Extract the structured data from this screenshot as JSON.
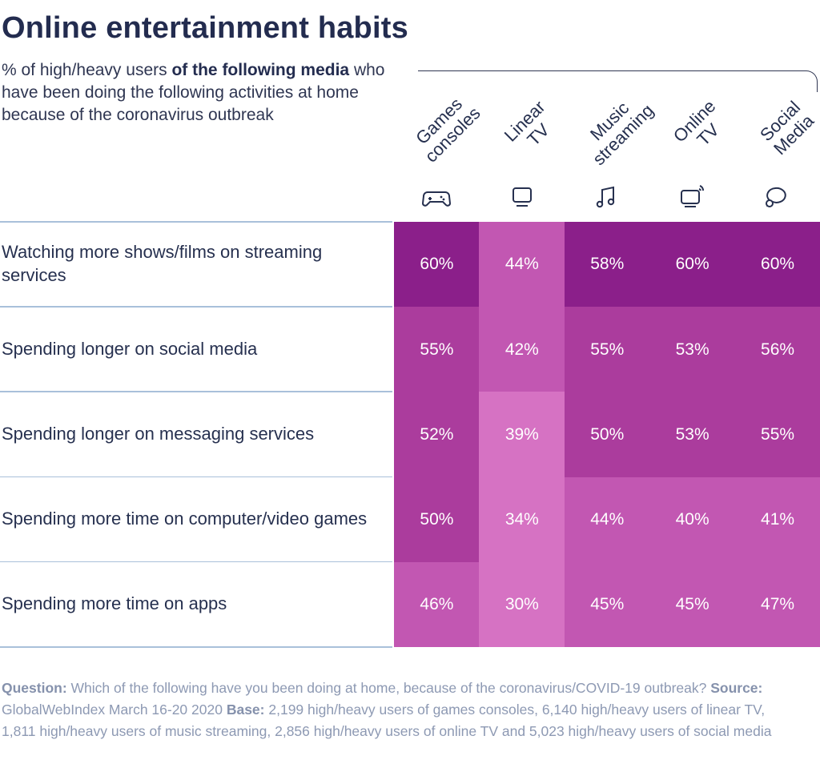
{
  "title": "Online entertainment habits",
  "subtitle": {
    "part1": "% of high/heavy users ",
    "bold": "of the following media",
    "part2": " who have been doing the following activities at home because of the coronavirus outbreak"
  },
  "colors": {
    "shade_60": "#8b1f8a",
    "shade_55": "#ab3c9d",
    "shade_44": "#c257b2",
    "shade_30": "#d672c3"
  },
  "chart_data": {
    "type": "table",
    "title": "Online entertainment habits",
    "columns": [
      {
        "line1": "Games",
        "line2": "consoles",
        "icon": "gamepad-icon"
      },
      {
        "line1": "Linear",
        "line2": "TV",
        "icon": "tv-icon"
      },
      {
        "line1": "Music",
        "line2": "streaming",
        "icon": "music-note-icon"
      },
      {
        "line1": "Online",
        "line2": "TV",
        "icon": "online-tv-icon"
      },
      {
        "line1": "Social",
        "line2": "Media",
        "icon": "speech-bubble-icon"
      }
    ],
    "rows": [
      {
        "label": "Watching more shows/films on streaming services",
        "values": [
          60,
          44,
          58,
          60,
          60
        ],
        "display": [
          "60%",
          "44%",
          "58%",
          "60%",
          "60%"
        ]
      },
      {
        "label": "Spending longer on social media",
        "values": [
          55,
          42,
          55,
          53,
          56
        ],
        "display": [
          "55%",
          "42%",
          "55%",
          "53%",
          "56%"
        ]
      },
      {
        "label": "Spending longer on messaging services",
        "values": [
          52,
          39,
          50,
          53,
          55
        ],
        "display": [
          "52%",
          "39%",
          "50%",
          "53%",
          "55%"
        ]
      },
      {
        "label": "Spending more time on computer/video games",
        "values": [
          50,
          34,
          44,
          40,
          41
        ],
        "display": [
          "50%",
          "34%",
          "44%",
          "40%",
          "41%"
        ]
      },
      {
        "label": "Spending more time on apps",
        "values": [
          46,
          30,
          45,
          45,
          47
        ],
        "display": [
          "46%",
          "30%",
          "45%",
          "45%",
          "47%"
        ]
      }
    ],
    "unit": "%"
  },
  "footnote": {
    "q_label": "Question:",
    "q_text": " Which of the following have you been doing at home, because of the coronavirus/COVID-19 outbreak? ",
    "s_label": "Source:",
    "s_text": " GlobalWebIndex March 16-20 2020 ",
    "b_label": "Base:",
    "b_text": " 2,199 high/heavy users of games consoles, 6,140 high/heavy users of linear TV, 1,811 high/heavy users of music streaming, 2,856 high/heavy users of online TV and 5,023 high/heavy users of social media"
  }
}
